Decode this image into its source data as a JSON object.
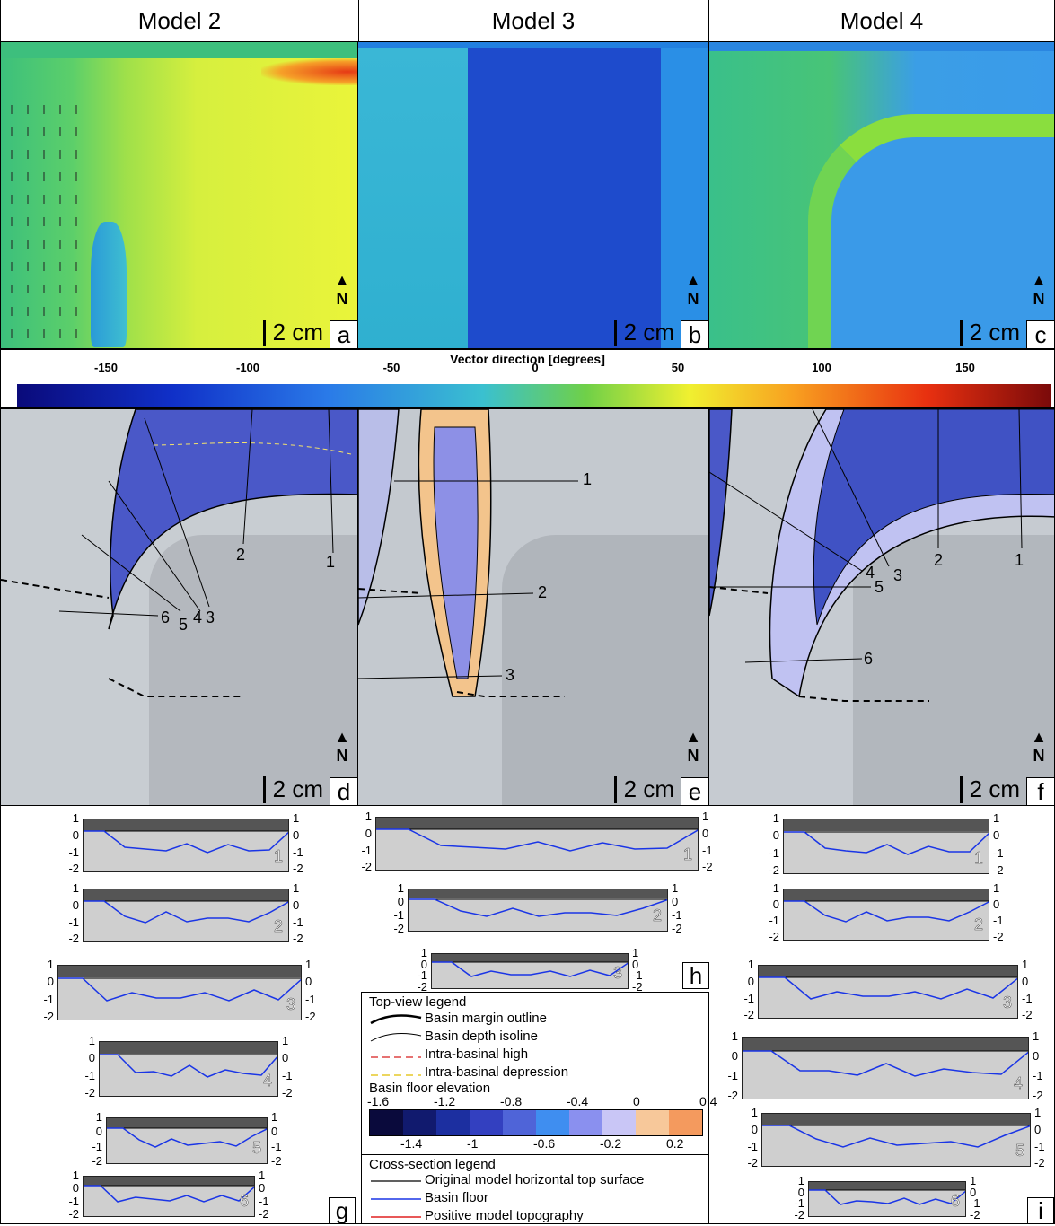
{
  "headers": [
    "Model 2",
    "Model 3",
    "Model 4"
  ],
  "top_panels": [
    {
      "letter": "a",
      "scale": "2 cm",
      "north": "N"
    },
    {
      "letter": "b",
      "scale": "2 cm",
      "north": "N"
    },
    {
      "letter": "c",
      "scale": "2 cm",
      "north": "N"
    }
  ],
  "colorbar": {
    "title": "Vector direction [degrees]",
    "ticks": [
      "-150",
      "-100",
      "-50",
      "0",
      "50",
      "100",
      "150"
    ]
  },
  "mid_panels": [
    {
      "letter": "d",
      "scale": "2 cm",
      "north": "N",
      "sections": [
        "1",
        "2",
        "3",
        "4",
        "5",
        "6"
      ]
    },
    {
      "letter": "e",
      "scale": "2 cm",
      "north": "N",
      "sections": [
        "1",
        "2",
        "3"
      ]
    },
    {
      "letter": "f",
      "scale": "2 cm",
      "north": "N",
      "sections": [
        "1",
        "2",
        "3",
        "4",
        "5",
        "6"
      ]
    }
  ],
  "cross_sections": {
    "axis_ticks": [
      "1",
      "0",
      "-1",
      "-2"
    ],
    "g": {
      "letter": "g",
      "numbers": [
        "1",
        "2",
        "3",
        "4",
        "5",
        "6"
      ]
    },
    "h": {
      "letter": "h",
      "numbers": [
        "1",
        "2",
        "3"
      ]
    },
    "i": {
      "letter": "i",
      "numbers": [
        "1",
        "2",
        "3",
        "4",
        "5",
        "6"
      ]
    }
  },
  "legend": {
    "top_title": "Top-view legend",
    "items": [
      "Basin margin outline",
      "Basin depth isoline",
      "Intra-basinal high",
      "Intra-basinal depression"
    ],
    "elevation_title": "Basin floor elevation",
    "upper_ticks": [
      "-1.6",
      "-1.2",
      "-0.8",
      "-0.4",
      "0",
      "0.4"
    ],
    "lower_ticks": [
      "-1.4",
      "-1",
      "-0.6",
      "-0.2",
      "0.2"
    ],
    "swatches": [
      "#0a0a3c",
      "#111a6e",
      "#1c2fa0",
      "#3340c0",
      "#4f64d8",
      "#3f8ef0",
      "#8a90ef",
      "#c9c6f6",
      "#f7c89a",
      "#f49a5e"
    ],
    "xsec_title": "Cross-section legend",
    "xsec_items": [
      "Original model horizontal top surface",
      "Basin floor",
      "Positive model topography"
    ]
  }
}
